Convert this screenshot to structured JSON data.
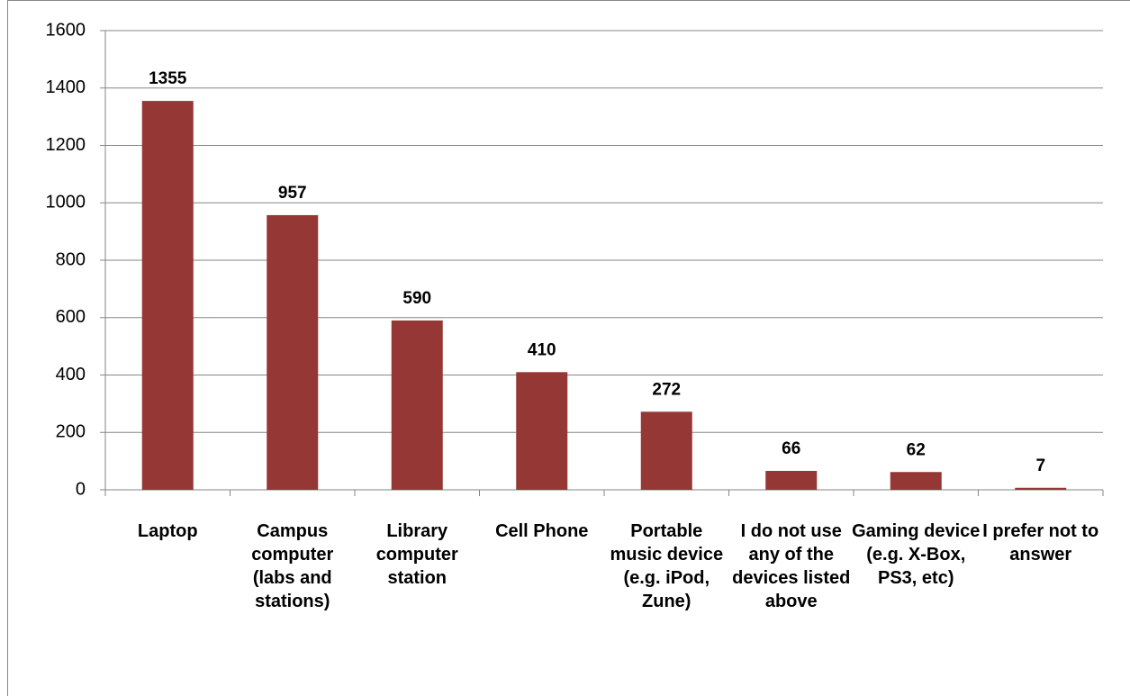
{
  "chart_data": {
    "type": "bar",
    "categories": [
      "Laptop",
      "Campus computer (labs and stations)",
      "Library computer station",
      "Cell Phone",
      "Portable music device (e.g. iPod, Zune)",
      "I do not use any of the devices listed above",
      "Gaming device (e.g. X-Box, PS3, etc)",
      "I prefer not to answer"
    ],
    "values": [
      1355,
      957,
      590,
      410,
      272,
      66,
      62,
      7
    ],
    "color": "#953735",
    "ylim": [
      0,
      1600
    ],
    "yticks": [
      0,
      200,
      400,
      600,
      800,
      1000,
      1200,
      1400,
      1600
    ],
    "grid": true
  }
}
